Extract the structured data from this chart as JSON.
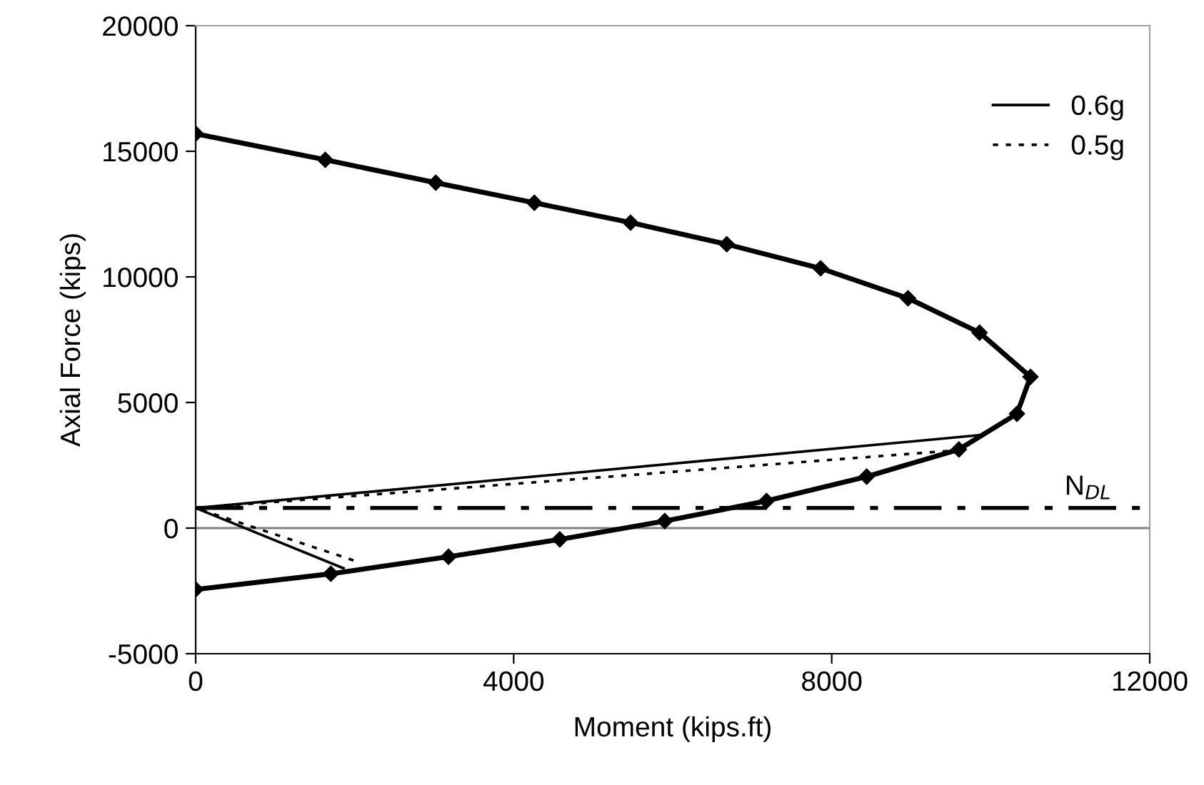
{
  "chart_data": {
    "type": "line",
    "xlabel": "Moment (kips.ft)",
    "ylabel": "Axial Force (kips)",
    "xlim": [
      0,
      12000
    ],
    "xticks": [
      0,
      4000,
      8000,
      12000
    ],
    "ylim": [
      -5000,
      20000
    ],
    "yticks": [
      -5000,
      0,
      5000,
      10000,
      15000,
      20000
    ],
    "grid": false,
    "legend": "top right",
    "series": [
      {
        "x": [
          0,
          1630,
          3020,
          4260,
          5470,
          6680,
          7860,
          8960,
          9860,
          10500,
          10330,
          9600,
          8440,
          7180,
          5900,
          4580,
          3180,
          1700,
          0
        ],
        "values": [
          15700,
          14660,
          13750,
          12950,
          12160,
          11300,
          10340,
          9150,
          7780,
          6020,
          4550,
          3130,
          2050,
          1080,
          280,
          -450,
          -1140,
          -1820,
          -2440
        ],
        "color": "#000000",
        "marker": "diamond",
        "line_style": "solid"
      },
      {
        "name": "0.6g",
        "x": [
          9860,
          0,
          1860
        ],
        "values": [
          3700,
          800,
          -1600
        ],
        "color": "#000000",
        "marker": "none",
        "line_style": "solid"
      },
      {
        "name": "0.5g",
        "x": [
          9460,
          0,
          2000
        ],
        "values": [
          3070,
          800,
          -1300
        ],
        "color": "#000000",
        "marker": "none",
        "line_style": "dotted"
      }
    ],
    "ref_lines": [
      {
        "axis": "y",
        "value": 800,
        "label": "N$_{DL}$",
        "color": "#000000",
        "line_style": "dashdot"
      },
      {
        "axis": "y",
        "value": 0,
        "color": "#808080",
        "line_style": "solid"
      }
    ]
  }
}
